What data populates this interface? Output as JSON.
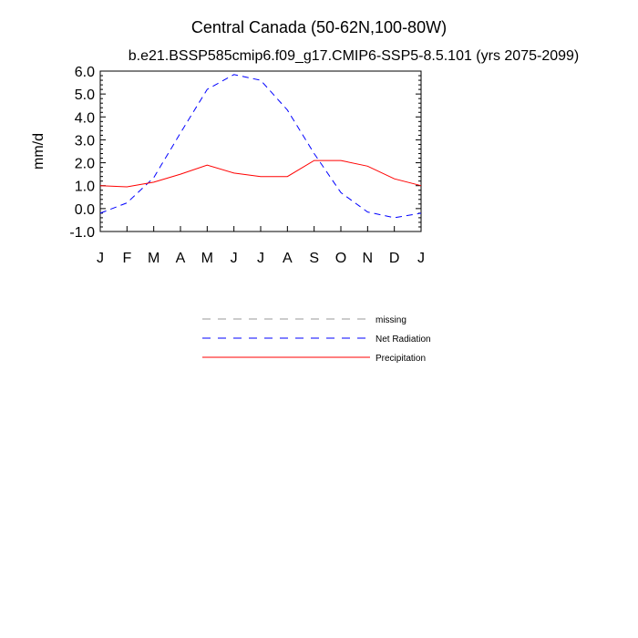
{
  "chart_data": {
    "type": "line",
    "title": "Central Canada (50-62N,100-80W)",
    "subtitle": "b.e21.BSSP585cmip6.f09_g17.CMIP6-SSP5-8.5.101 (yrs 2075-2099)",
    "xlabel": "",
    "ylabel": "mm/d",
    "categories": [
      "J",
      "F",
      "M",
      "A",
      "M",
      "J",
      "J",
      "A",
      "S",
      "O",
      "N",
      "D",
      "J"
    ],
    "ylim": [
      -1.0,
      6.0
    ],
    "yticks": [
      "-1.0",
      "0.0",
      "1.0",
      "2.0",
      "3.0",
      "4.0",
      "5.0",
      "6.0"
    ],
    "grid": false,
    "legend_position": "below",
    "series": [
      {
        "name": "Net Radiation",
        "color": "#0000ff",
        "dash": "dashed",
        "values": [
          -0.2,
          0.25,
          1.35,
          3.3,
          5.2,
          5.85,
          5.6,
          4.3,
          2.4,
          0.7,
          -0.15,
          -0.4,
          -0.2
        ]
      },
      {
        "name": "Precipitation",
        "color": "#ff0000",
        "dash": "solid",
        "values": [
          1.0,
          0.95,
          1.15,
          1.5,
          1.9,
          1.55,
          1.4,
          1.4,
          2.1,
          2.1,
          1.85,
          1.3,
          1.0
        ]
      }
    ],
    "legend": [
      {
        "name": "missing",
        "color": "#999999",
        "dash": "dashed"
      },
      {
        "name": "Net Radiation",
        "color": "#0000ff",
        "dash": "dashed"
      },
      {
        "name": "Precipitation",
        "color": "#ff0000",
        "dash": "solid"
      }
    ]
  }
}
